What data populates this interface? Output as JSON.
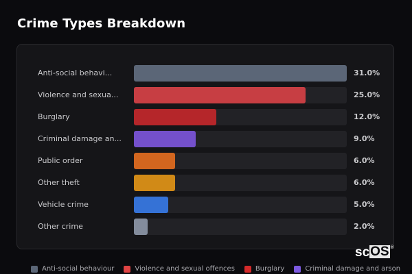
{
  "header": {
    "title": "Crime Types Breakdown"
  },
  "rows": [
    {
      "label": "Anti-social behavi...",
      "pct_label": "31.0%",
      "value": 31.0,
      "color": "#5b6677"
    },
    {
      "label": "Violence and sexua...",
      "pct_label": "25.0%",
      "value": 25.0,
      "color": "#c73e43"
    },
    {
      "label": "Burglary",
      "pct_label": "12.0%",
      "value": 12.0,
      "color": "#b5262a"
    },
    {
      "label": "Criminal damage an...",
      "pct_label": "9.0%",
      "value": 9.0,
      "color": "#7450cc"
    },
    {
      "label": "Public order",
      "pct_label": "6.0%",
      "value": 6.0,
      "color": "#d2661f"
    },
    {
      "label": "Other theft",
      "pct_label": "6.0%",
      "value": 6.0,
      "color": "#d18a17"
    },
    {
      "label": "Vehicle crime",
      "pct_label": "5.0%",
      "value": 5.0,
      "color": "#3572d6"
    },
    {
      "label": "Other crime",
      "pct_label": "2.0%",
      "value": 2.0,
      "color": "#838c9c"
    }
  ],
  "legend": [
    {
      "label": "Anti-social behaviour",
      "color": "#5b6677"
    },
    {
      "label": "Violence and sexual offences",
      "color": "#e04444"
    },
    {
      "label": "Burglary",
      "color": "#d42a2a"
    },
    {
      "label": "Criminal damage and arson",
      "color": "#7c5ae0"
    }
  ],
  "watermark": {
    "prefix": "sc",
    "boxed": "OS",
    "mark": "®"
  },
  "chart_data": {
    "type": "bar",
    "orientation": "horizontal",
    "title": "Crime Types Breakdown",
    "categories": [
      "Anti-social behaviour",
      "Violence and sexual offences",
      "Burglary",
      "Criminal damage and arson",
      "Public order",
      "Other theft",
      "Vehicle crime",
      "Other crime"
    ],
    "display_labels": [
      "Anti-social behavi...",
      "Violence and sexua...",
      "Burglary",
      "Criminal damage an...",
      "Public order",
      "Other theft",
      "Vehicle crime",
      "Other crime"
    ],
    "values": [
      31.0,
      25.0,
      12.0,
      9.0,
      6.0,
      6.0,
      5.0,
      2.0
    ],
    "value_labels": [
      "31.0%",
      "25.0%",
      "12.0%",
      "9.0%",
      "6.0%",
      "6.0%",
      "5.0%",
      "2.0%"
    ],
    "colors": [
      "#5b6677",
      "#c73e43",
      "#b5262a",
      "#7450cc",
      "#d2661f",
      "#d18a17",
      "#3572d6",
      "#838c9c"
    ],
    "xlabel": "",
    "ylabel": "",
    "xlim": [
      0,
      31
    ],
    "grid": false,
    "legend_position": "bottom",
    "legend_entries": [
      "Anti-social behaviour",
      "Violence and sexual offences",
      "Burglary",
      "Criminal damage and arson"
    ]
  }
}
